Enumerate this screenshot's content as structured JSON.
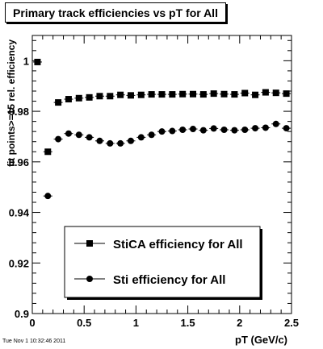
{
  "timestamp": "Tue Nov  1 10:32:46 2011",
  "chart_data": {
    "type": "scatter",
    "title": "Primary track efficiencies vs pT for All",
    "xlabel": "pT (GeV/c)",
    "ylabel": "fit points>=15 rel. efficiency",
    "xlim": [
      0,
      2.5
    ],
    "ylim": [
      0.9,
      1.01
    ],
    "x_ticks": [
      "0",
      "0.5",
      "1",
      "1.5",
      "2",
      "2.5"
    ],
    "y_ticks": [
      "0.9",
      "0.92",
      "0.94",
      "0.96",
      "0.98",
      "1"
    ],
    "grid": false,
    "legend_position": "bottom-center",
    "series": [
      {
        "name": "StiCA efficiency  for All",
        "marker": "square",
        "x": [
          0.05,
          0.15,
          0.25,
          0.35,
          0.45,
          0.55,
          0.65,
          0.75,
          0.85,
          0.95,
          1.05,
          1.15,
          1.25,
          1.35,
          1.45,
          1.55,
          1.65,
          1.75,
          1.85,
          1.95,
          2.05,
          2.15,
          2.25,
          2.35,
          2.45
        ],
        "y": [
          0.9995,
          0.964,
          0.9835,
          0.9848,
          0.9852,
          0.9855,
          0.986,
          0.986,
          0.9865,
          0.9863,
          0.9865,
          0.9867,
          0.9867,
          0.9867,
          0.9868,
          0.9868,
          0.9867,
          0.987,
          0.9868,
          0.9867,
          0.9872,
          0.9865,
          0.9875,
          0.9873,
          0.987
        ]
      },
      {
        "name": "Sti efficiency  for All",
        "marker": "circle",
        "x": [
          0.15,
          0.25,
          0.35,
          0.45,
          0.55,
          0.65,
          0.75,
          0.85,
          0.95,
          1.05,
          1.15,
          1.25,
          1.35,
          1.45,
          1.55,
          1.65,
          1.75,
          1.85,
          1.95,
          2.05,
          2.15,
          2.25,
          2.35,
          2.45
        ],
        "y": [
          0.9465,
          0.969,
          0.9712,
          0.9707,
          0.9697,
          0.9683,
          0.9673,
          0.9673,
          0.9683,
          0.9697,
          0.9707,
          0.972,
          0.9722,
          0.9727,
          0.973,
          0.9725,
          0.9732,
          0.9727,
          0.9725,
          0.9727,
          0.9733,
          0.9735,
          0.975,
          0.9733
        ]
      }
    ]
  }
}
